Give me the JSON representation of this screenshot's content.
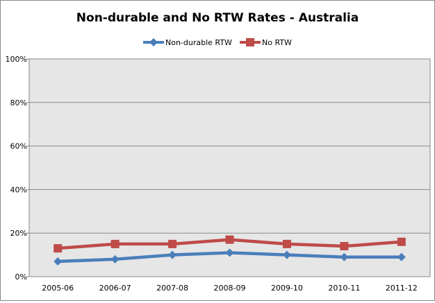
{
  "chart_data": {
    "type": "line",
    "title": "Non-durable  and No RTW Rates - Australia",
    "xlabel": "",
    "ylabel": "",
    "categories": [
      "2005-06",
      "2006-07",
      "2007-08",
      "2008-09",
      "2009-10",
      "2010-11",
      "2011-12"
    ],
    "ylim": [
      0,
      100
    ],
    "yticks": [
      "0%",
      "20%",
      "40%",
      "60%",
      "80%",
      "100%"
    ],
    "ytick_values": [
      0,
      20,
      40,
      60,
      80,
      100
    ],
    "grid": true,
    "legend_position": "top",
    "series": [
      {
        "name": "Non-durable RTW",
        "color": "#4a7ebb",
        "marker": "diamond",
        "values": [
          7,
          8,
          10,
          11,
          10,
          9,
          9
        ]
      },
      {
        "name": "No RTW",
        "color": "#be4b48",
        "marker": "square",
        "values": [
          13,
          15,
          15,
          17,
          15,
          14,
          16
        ]
      }
    ]
  }
}
